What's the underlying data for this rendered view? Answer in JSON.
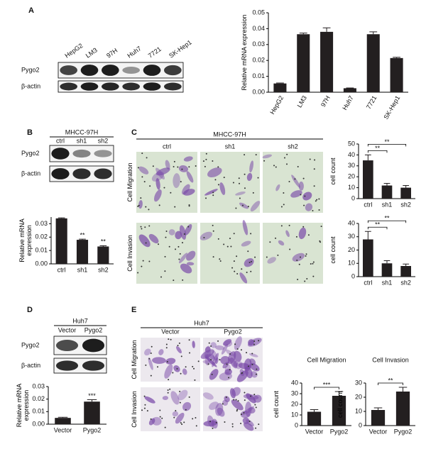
{
  "panels": [
    "A",
    "B",
    "C",
    "D",
    "E"
  ],
  "blots": [
    {
      "lanes": [
        "HepG2",
        "LM3",
        "97H",
        "Huh7",
        "7721",
        "SK-Hep1"
      ],
      "rows": [
        "Pygo2",
        "β-actin"
      ]
    },
    {
      "header": "MHCC-97H",
      "lanes": [
        "ctrl",
        "sh1",
        "sh2"
      ],
      "rows": [
        "Pygo2",
        "β-actin"
      ]
    },
    {
      "header": "Huh7",
      "lanes": [
        "Vector",
        "Pygo2"
      ],
      "rows": [
        "Pygo2",
        "β-actin"
      ]
    }
  ],
  "micrographs": [
    {
      "header": "MHCC-97H",
      "columns": [
        "ctrl",
        "sh1",
        "sh2"
      ],
      "rows": [
        "Cell Migration",
        "Cell Invasion"
      ]
    },
    {
      "header": "Huh7",
      "columns": [
        "Vector",
        "Pygo2"
      ],
      "rows": [
        "Cell Migration",
        "Cell Invasion"
      ]
    }
  ],
  "chart_data": [
    {
      "type": "bar",
      "ylabel": "Relative mRNA expression",
      "categories": [
        "HepG2",
        "LM3",
        "97H",
        "Huh7",
        "7721",
        "SK-Hep1"
      ],
      "values": [
        0.0055,
        0.0365,
        0.038,
        0.0025,
        0.0365,
        0.0215
      ],
      "errors": [
        0.0003,
        0.0007,
        0.0025,
        0.0002,
        0.0015,
        0.0005
      ],
      "color": "#231f20",
      "ylim": [
        0,
        0.05
      ],
      "yticks": [
        {
          "value": 0,
          "label": "0.00"
        },
        {
          "value": 0.01,
          "label": "0.01"
        },
        {
          "value": 0.02,
          "label": "0.02"
        },
        {
          "value": 0.03,
          "label": "0.03"
        },
        {
          "value": 0.04,
          "label": "0.04"
        },
        {
          "value": 0.05,
          "label": "0.05"
        }
      ]
    },
    {
      "type": "bar",
      "ylabel": "Relative mRNA expression",
      "categories": [
        "ctrl",
        "sh1",
        "sh2"
      ],
      "values": [
        0.034,
        0.018,
        0.013
      ],
      "errors": [
        0.0004,
        0.0005,
        0.0006
      ],
      "color": "#231f20",
      "ylim": [
        0,
        0.035
      ],
      "yticks": [
        {
          "value": 0,
          "label": "0.00"
        },
        {
          "value": 0.01,
          "label": "0.01"
        },
        {
          "value": 0.02,
          "label": "0.02"
        },
        {
          "value": 0.03,
          "label": "0.03"
        }
      ],
      "significance": [
        null,
        "**",
        "**"
      ]
    },
    {
      "type": "bar",
      "ylabel": "cell count",
      "categories": [
        "ctrl",
        "sh1",
        "sh2"
      ],
      "values": [
        35,
        12,
        10
      ],
      "errors": [
        5,
        2,
        2
      ],
      "color": "#231f20",
      "ylim": [
        0,
        50
      ],
      "yticks": [
        0,
        10,
        20,
        30,
        40,
        50
      ],
      "significance": [
        null,
        "**",
        "**"
      ],
      "significance_style": "bracket"
    },
    {
      "type": "bar",
      "ylabel": "cell count",
      "categories": [
        "ctrl",
        "sh1",
        "sh2"
      ],
      "values": [
        28,
        10,
        8
      ],
      "errors": [
        6,
        2,
        1.5
      ],
      "color": "#231f20",
      "ylim": [
        0,
        40
      ],
      "yticks": [
        0,
        10,
        20,
        30,
        40
      ],
      "significance": [
        null,
        "**",
        "**"
      ],
      "significance_style": "bracket"
    },
    {
      "type": "bar",
      "ylabel": "Relative mRNA expression",
      "categories": [
        "Vector",
        "Pygo2"
      ],
      "values": [
        0.005,
        0.018
      ],
      "errors": [
        0.0005,
        0.0015
      ],
      "color": "#231f20",
      "ylim": [
        0,
        0.03
      ],
      "yticks": [
        {
          "value": 0,
          "label": "0.00"
        },
        {
          "value": 0.01,
          "label": "0.01"
        },
        {
          "value": 0.02,
          "label": "0.02"
        },
        {
          "value": 0.03,
          "label": "0.03"
        }
      ],
      "significance": [
        null,
        "***"
      ]
    },
    {
      "type": "bar",
      "title": "Cell Migration",
      "ylabel": "cell count",
      "categories": [
        "Vector",
        "Pygo2"
      ],
      "values": [
        13,
        28
      ],
      "errors": [
        2,
        4
      ],
      "color": "#231f20",
      "ylim": [
        0,
        40
      ],
      "yticks": [
        0,
        10,
        20,
        30,
        40
      ],
      "significance": [
        null,
        "***"
      ],
      "significance_style": "bracket"
    },
    {
      "type": "bar",
      "title": "Cell Invasion",
      "ylabel": "cell count",
      "categories": [
        "Vector",
        "Pygo2"
      ],
      "values": [
        11,
        24
      ],
      "errors": [
        1.5,
        3
      ],
      "color": "#231f20",
      "ylim": [
        0,
        30
      ],
      "yticks": [
        0,
        10,
        20,
        30
      ],
      "significance": [
        null,
        "**"
      ],
      "significance_style": "bracket"
    }
  ]
}
